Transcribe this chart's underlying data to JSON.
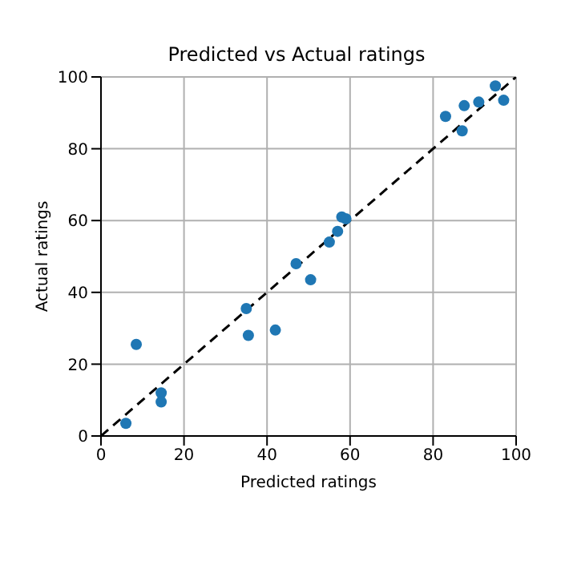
{
  "chart_data": {
    "type": "scatter",
    "title": "Predicted vs Actual ratings",
    "xlabel": "Predicted ratings",
    "ylabel": "Actual ratings",
    "xlim": [
      0,
      100
    ],
    "ylim": [
      0,
      100
    ],
    "xticks": [
      0,
      20,
      40,
      60,
      80,
      100
    ],
    "yticks": [
      0,
      20,
      40,
      60,
      80,
      100
    ],
    "grid": true,
    "series": [
      {
        "color": "#1f77b4",
        "marker": "circle",
        "x": [
          6,
          8.5,
          14.5,
          14.5,
          35,
          35.5,
          42,
          47,
          50.5,
          55,
          57,
          58,
          59,
          83,
          87,
          87.5,
          91,
          95,
          97
        ],
        "values": [
          3.5,
          25.5,
          12,
          9.5,
          35.5,
          28,
          29.5,
          48,
          43.5,
          54,
          57,
          61,
          60.5,
          89,
          85,
          92,
          93,
          97.5,
          93.5
        ]
      },
      {
        "type": "line",
        "color": "#000000",
        "line_style": "dashed",
        "marker": "none",
        "x": [
          0,
          100
        ],
        "values": [
          0,
          100
        ]
      }
    ]
  }
}
